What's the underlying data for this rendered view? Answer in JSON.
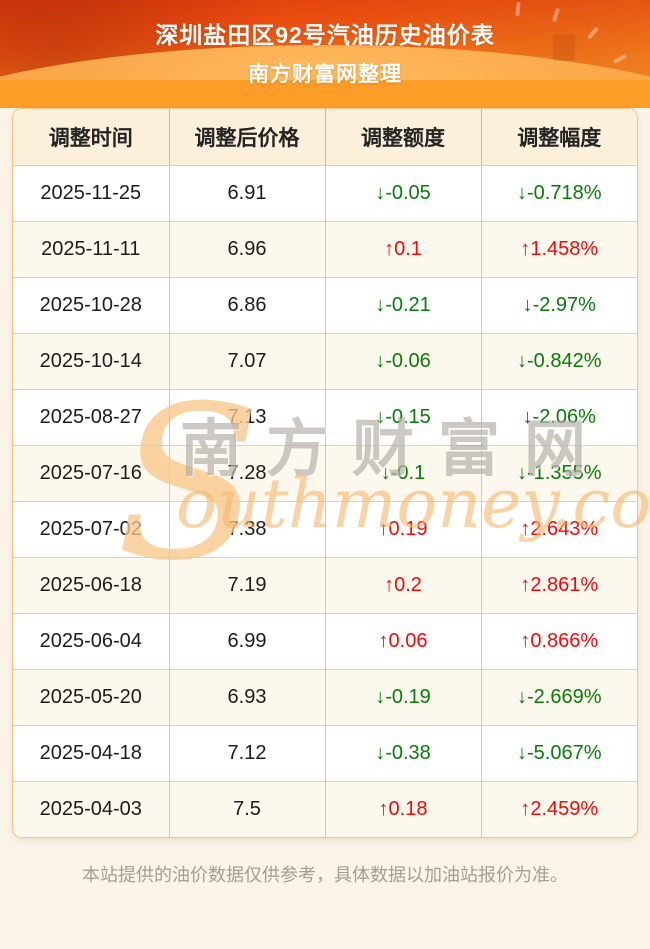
{
  "page": {
    "title": "深圳盐田区92号汽油历史油价表",
    "subtitle": "南方财富网整理",
    "footer_note": "本站提供的油价数据仅供参考，具体数据以加油站报价为准。"
  },
  "watermark": {
    "initial": "S",
    "cn_text": "南方财富网",
    "en_text": "outhmoney.com"
  },
  "colors": {
    "up_red": "#fe0505",
    "down_green": "#067d06",
    "banner_gradient_top": "#dc380b",
    "banner_gradient_bottom": "#fc9a33",
    "banner_swoosh": "#fb9d27",
    "table_header_bg": "#fcf0da",
    "row_alt_bg": "#fdf8ed",
    "cell_border": "#f5c083",
    "page_bg": "#f9f3e8"
  },
  "chart_data": {
    "type": "table",
    "title": "深圳盐田区92号汽油历史油价表",
    "subtitle": "南方财富网整理",
    "columns": [
      "调整时间",
      "调整后价格",
      "调整额度",
      "调整幅度"
    ],
    "rows": [
      {
        "date": "2025-11-25",
        "price": "6.91",
        "change": "↓-0.05",
        "pct": "↓-0.718%",
        "direction": "down"
      },
      {
        "date": "2025-11-11",
        "price": "6.96",
        "change": "↑0.1",
        "pct": "↑1.458%",
        "direction": "up"
      },
      {
        "date": "2025-10-28",
        "price": "6.86",
        "change": "↓-0.21",
        "pct": "↓-2.97%",
        "direction": "down"
      },
      {
        "date": "2025-10-14",
        "price": "7.07",
        "change": "↓-0.06",
        "pct": "↓-0.842%",
        "direction": "down"
      },
      {
        "date": "2025-08-27",
        "price": "7.13",
        "change": "↓-0.15",
        "pct": "↓-2.06%",
        "direction": "down"
      },
      {
        "date": "2025-07-16",
        "price": "7.28",
        "change": "↓-0.1",
        "pct": "↓-1.355%",
        "direction": "down"
      },
      {
        "date": "2025-07-02",
        "price": "7.38",
        "change": "↑0.19",
        "pct": "↑2.643%",
        "direction": "up"
      },
      {
        "date": "2025-06-18",
        "price": "7.19",
        "change": "↑0.2",
        "pct": "↑2.861%",
        "direction": "up"
      },
      {
        "date": "2025-06-04",
        "price": "6.99",
        "change": "↑0.06",
        "pct": "↑0.866%",
        "direction": "up"
      },
      {
        "date": "2025-05-20",
        "price": "6.93",
        "change": "↓-0.19",
        "pct": "↓-2.669%",
        "direction": "down"
      },
      {
        "date": "2025-04-18",
        "price": "7.12",
        "change": "↓-0.38",
        "pct": "↓-5.067%",
        "direction": "down"
      },
      {
        "date": "2025-04-03",
        "price": "7.5",
        "change": "↑0.18",
        "pct": "↑2.459%",
        "direction": "up"
      }
    ]
  }
}
